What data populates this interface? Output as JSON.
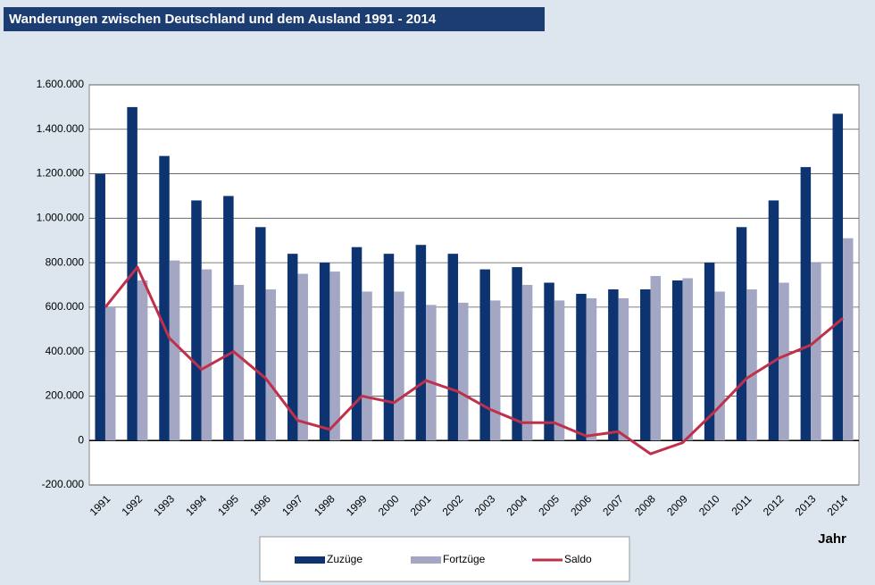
{
  "chart_data": {
    "type": "bar",
    "title": "Wanderungen zwischen Deutschland und dem Ausland 1991 - 2014",
    "x_label": "Jahr",
    "categories": [
      "1991",
      "1992",
      "1993",
      "1994",
      "1995",
      "1996",
      "1997",
      "1998",
      "1999",
      "2000",
      "2001",
      "2002",
      "2003",
      "2004",
      "2005",
      "2006",
      "2007",
      "2008",
      "2009",
      "2010",
      "2011",
      "2012",
      "2013",
      "2014"
    ],
    "series": [
      {
        "name": "Zuzüge",
        "type": "bar",
        "color": "#0d3471",
        "values": [
          1200000,
          1500000,
          1280000,
          1080000,
          1100000,
          960000,
          840000,
          800000,
          870000,
          840000,
          880000,
          840000,
          770000,
          780000,
          710000,
          660000,
          680000,
          680000,
          720000,
          800000,
          960000,
          1080000,
          1230000,
          1470000
        ]
      },
      {
        "name": "Fortzüge",
        "type": "bar",
        "color": "#a3a7c4",
        "values": [
          600000,
          720000,
          810000,
          770000,
          700000,
          680000,
          750000,
          760000,
          670000,
          670000,
          610000,
          620000,
          630000,
          700000,
          630000,
          640000,
          640000,
          740000,
          730000,
          670000,
          680000,
          710000,
          800000,
          910000
        ]
      },
      {
        "name": "Saldo",
        "type": "line",
        "color": "#c0304a",
        "values": [
          600000,
          780000,
          460000,
          320000,
          400000,
          280000,
          90000,
          50000,
          200000,
          170000,
          270000,
          220000,
          140000,
          80000,
          80000,
          20000,
          40000,
          -60000,
          -10000,
          130000,
          280000,
          370000,
          430000,
          550000
        ]
      }
    ],
    "ylim": [
      -200000,
      1600000
    ],
    "yticks": [
      {
        "value": -200000,
        "label": "-200.000"
      },
      0,
      {
        "value": 200000,
        "label": "200.000"
      },
      {
        "value": 400000,
        "label": "400.000"
      },
      {
        "value": 600000,
        "label": "600.000"
      },
      {
        "value": 800000,
        "label": "800.000"
      },
      {
        "value": 1000000,
        "label": "1.000.000"
      },
      {
        "value": 1200000,
        "label": "1.200.000"
      },
      {
        "value": 1400000,
        "label": "1.400.000"
      },
      {
        "value": 1600000,
        "label": "1.600.000"
      }
    ],
    "grid": true
  }
}
